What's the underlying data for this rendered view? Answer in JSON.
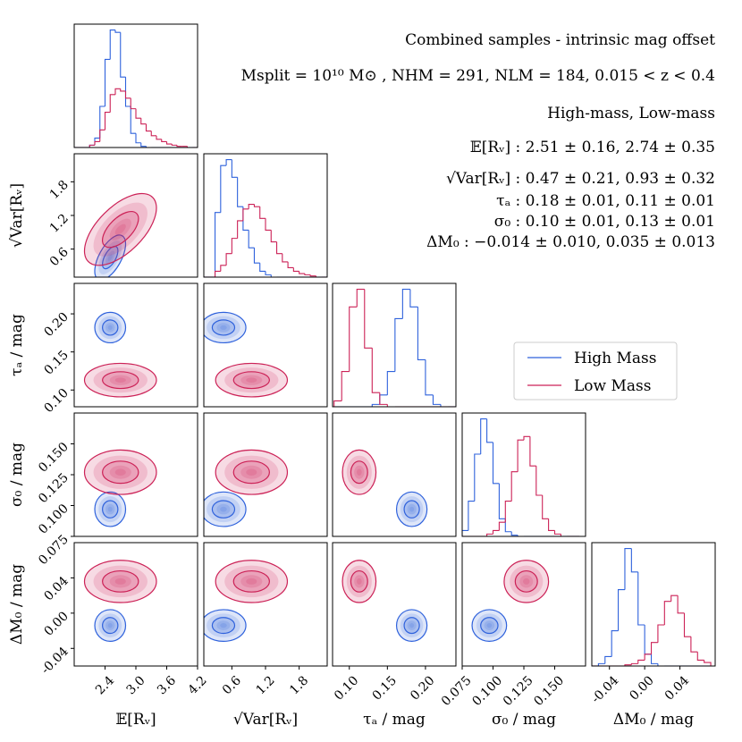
{
  "chart_data": {
    "type": "corner",
    "text_lines": [
      "Combined samples - intrinsic mag offset",
      "Msplit = 10¹⁰ M⊙ ,  NHM = 291,  NLM = 184,  0.015 < z < 0.4",
      "High-mass,  Low-mass",
      "𝔼[Rᵥ] : 2.51 ± 0.16,  2.74 ± 0.35",
      "√Var[Rᵥ] : 0.47 ± 0.21,  0.93 ± 0.32",
      "τₐ : 0.18 ± 0.01,  0.11 ± 0.01",
      "σ₀ : 0.10 ± 0.01,  0.13 ± 0.01",
      "ΔM₀ : −0.014 ± 0.010,  0.035 ± 0.013"
    ],
    "hist_ylim": [
      0,
      1.05
    ],
    "params": [
      {
        "label": "𝔼[Rᵥ]",
        "lim": [
          1.8,
          4.2
        ],
        "ticks": [
          2.4,
          {
            "value": 3,
            "label": "3.0"
          },
          3.6,
          4.2
        ],
        "bins": [
          1.8,
          1.9,
          2.0,
          2.1,
          2.2,
          2.3,
          2.4,
          2.5,
          2.6,
          2.7,
          2.8,
          2.9,
          3.0,
          3.1,
          3.2,
          3.3,
          3.4,
          3.5,
          3.6,
          3.7,
          3.8,
          3.9,
          4.0,
          4.1,
          4.2
        ]
      },
      {
        "label": "√Var[Rᵥ]",
        "lim": [
          0.1,
          2.3
        ],
        "ticks": [
          0.6,
          1.2,
          1.8
        ],
        "bins": [
          0.1,
          0.2,
          0.3,
          0.4,
          0.5,
          0.6,
          0.7,
          0.8,
          0.9,
          1.0,
          1.1,
          1.2,
          1.3,
          1.4,
          1.5,
          1.6,
          1.7,
          1.8,
          1.9,
          2.0,
          2.1,
          2.2,
          2.3
        ]
      },
      {
        "label": "τₐ / mag",
        "lim": [
          0.078,
          0.24
        ],
        "ticks": [
          {
            "value": 0.1,
            "label": "0.10"
          },
          0.15,
          {
            "value": 0.2,
            "label": "0.20"
          }
        ],
        "bins": [
          0.08,
          0.09,
          0.1,
          0.11,
          0.12,
          0.13,
          0.14,
          0.15,
          0.16,
          0.17,
          0.18,
          0.19,
          0.2,
          0.21,
          0.22,
          0.23,
          0.24
        ]
      },
      {
        "label": "σ₀ / mag",
        "lim": [
          0.075,
          0.175
        ],
        "ticks": [
          0.075,
          {
            "value": 0.1,
            "label": "0.100"
          },
          0.125,
          {
            "value": 0.15,
            "label": "0.150"
          }
        ],
        "bins": [
          0.075,
          0.08,
          0.085,
          0.09,
          0.095,
          0.1,
          0.105,
          0.11,
          0.115,
          0.12,
          0.125,
          0.13,
          0.135,
          0.14,
          0.145,
          0.15,
          0.155,
          0.16,
          0.165,
          0.17
        ]
      },
      {
        "label": "ΔM₀ / mag",
        "lim": [
          -0.06,
          0.08
        ],
        "ticks": [
          -0.04,
          {
            "value": 0,
            "label": "0.00"
          },
          0.04
        ],
        "bins": [
          -0.06,
          -0.0525,
          -0.045,
          -0.0375,
          -0.03,
          -0.0225,
          -0.015,
          -0.0075,
          0,
          0.0075,
          0.015,
          0.0225,
          0.03,
          0.0375,
          0.045,
          0.0525,
          0.06,
          0.0675,
          0.075
        ]
      }
    ],
    "series": [
      {
        "name": "High Mass",
        "color": "#2f62dc",
        "mean": [
          2.5,
          0.45,
          0.182,
          0.097,
          -0.014
        ],
        "std": [
          0.15,
          0.2,
          0.01,
          0.007,
          0.009
        ],
        "correlations": [
          0.6,
          0,
          0,
          0,
          0,
          0,
          0,
          0,
          0,
          0
        ],
        "hist": [
          [
            0,
            0,
            0,
            0.02,
            0.08,
            0.35,
            0.75,
            1.0,
            0.98,
            0.6,
            0.35,
            0.12,
            0.04,
            0.01,
            0,
            0,
            0,
            0,
            0,
            0,
            0,
            0,
            0,
            0
          ],
          [
            0,
            0,
            0.55,
            0.95,
            1.0,
            0.85,
            0.6,
            0.4,
            0.25,
            0.12,
            0.05,
            0.02,
            0,
            0,
            0,
            0,
            0,
            0,
            0,
            0,
            0,
            0
          ],
          [
            0,
            0,
            0,
            0,
            0,
            0.02,
            0.1,
            0.3,
            0.75,
            1.0,
            0.85,
            0.4,
            0.1,
            0.02,
            0,
            0
          ],
          [
            0.05,
            0.3,
            0.7,
            1.0,
            0.8,
            0.45,
            0.15,
            0.04,
            0.01,
            0,
            0,
            0,
            0,
            0,
            0,
            0,
            0,
            0,
            0
          ],
          [
            0,
            0.02,
            0.08,
            0.3,
            0.65,
            1.0,
            0.8,
            0.35,
            0.1,
            0.02,
            0,
            0,
            0,
            0,
            0,
            0,
            0,
            0
          ]
        ]
      },
      {
        "name": "Low Mass",
        "color": "#cc2257",
        "mean": [
          2.7,
          0.95,
          0.113,
          0.127,
          0.036
        ],
        "std": [
          0.35,
          0.32,
          0.011,
          0.009,
          0.012
        ],
        "correlations": [
          0.6,
          0,
          0,
          0,
          0,
          0,
          0,
          0,
          0,
          0
        ],
        "hist": [
          [
            0,
            0,
            0,
            0.02,
            0.05,
            0.15,
            0.3,
            0.45,
            0.5,
            0.48,
            0.42,
            0.33,
            0.25,
            0.2,
            0.14,
            0.1,
            0.07,
            0.05,
            0.03,
            0.02,
            0.01,
            0.01,
            0,
            0
          ],
          [
            0,
            0,
            0.05,
            0.1,
            0.2,
            0.33,
            0.48,
            0.58,
            0.62,
            0.6,
            0.5,
            0.4,
            0.3,
            0.2,
            0.13,
            0.08,
            0.05,
            0.03,
            0.02,
            0.01,
            0,
            0
          ],
          [
            0.05,
            0.3,
            0.85,
            1.0,
            0.5,
            0.12,
            0.02,
            0,
            0,
            0,
            0,
            0,
            0,
            0,
            0,
            0
          ],
          [
            0,
            0,
            0,
            0,
            0.02,
            0.05,
            0.12,
            0.3,
            0.55,
            0.82,
            0.85,
            0.6,
            0.35,
            0.15,
            0.05,
            0.02,
            0,
            0,
            0
          ],
          [
            0,
            0,
            0,
            0,
            0,
            0.01,
            0.02,
            0.05,
            0.1,
            0.2,
            0.35,
            0.55,
            0.6,
            0.45,
            0.25,
            0.12,
            0.05,
            0.03
          ]
        ]
      }
    ]
  }
}
